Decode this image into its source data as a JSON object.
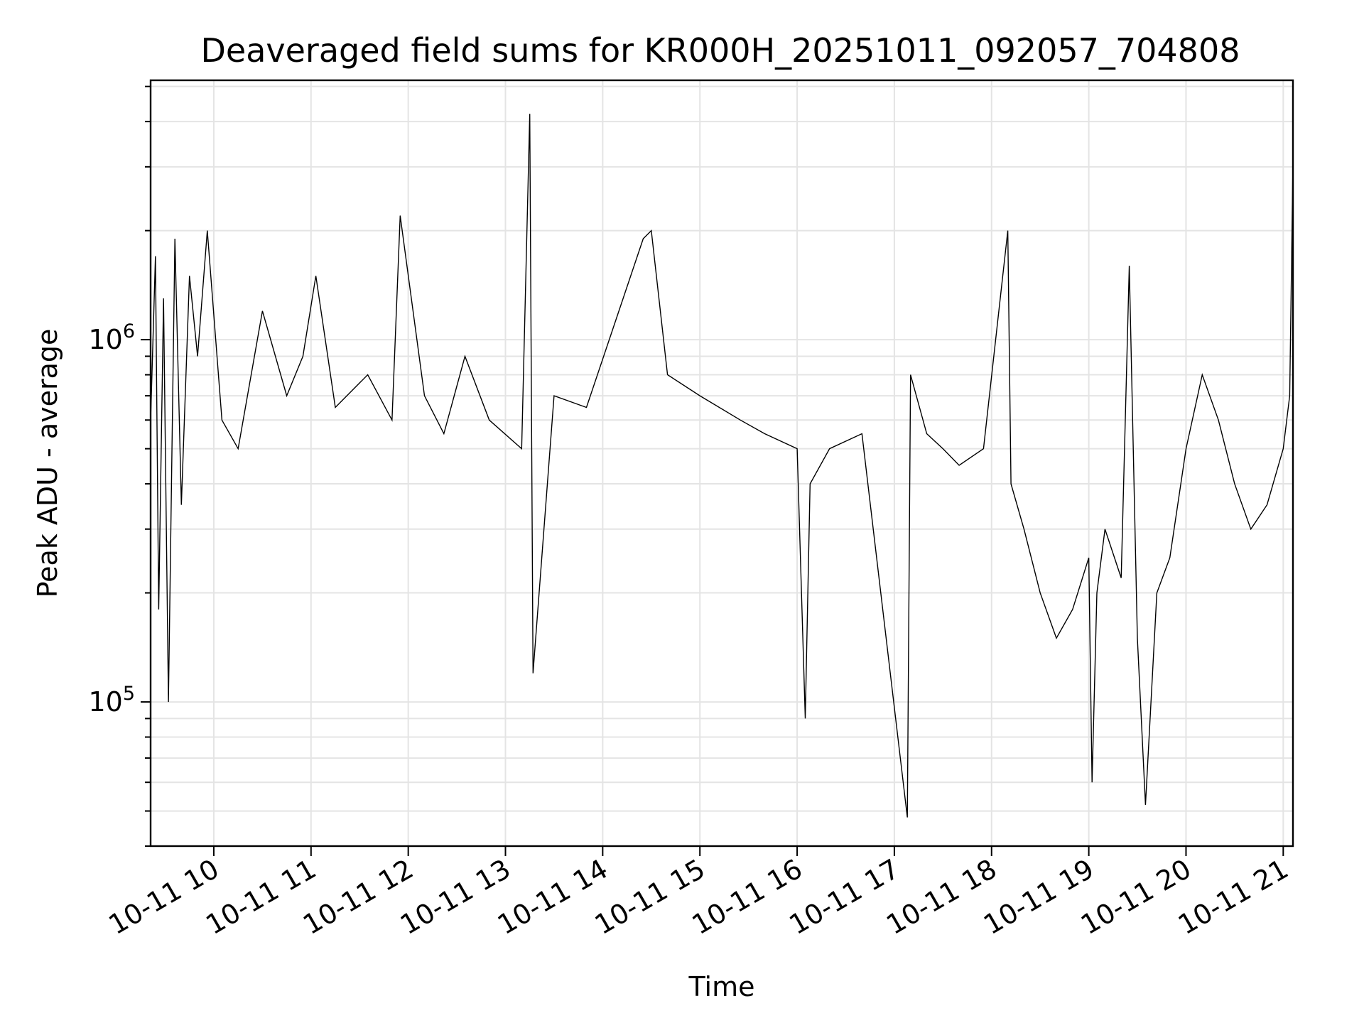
{
  "chart_data": {
    "type": "line",
    "title": "Deaveraged field sums for KR000H_20251011_092057_704808",
    "xlabel": "Time",
    "ylabel": "Peak ADU - average",
    "yscale": "log",
    "ylim": [
      40000,
      5200000
    ],
    "xlim": [
      "2025-10-11 09:21",
      "2025-10-11 21:06"
    ],
    "grid": true,
    "x_ticks": [
      {
        "value": "2025-10-11 10:00",
        "label": "10-11 10"
      },
      {
        "value": "2025-10-11 11:00",
        "label": "10-11 11"
      },
      {
        "value": "2025-10-11 12:00",
        "label": "10-11 12"
      },
      {
        "value": "2025-10-11 13:00",
        "label": "10-11 13"
      },
      {
        "value": "2025-10-11 14:00",
        "label": "10-11 14"
      },
      {
        "value": "2025-10-11 15:00",
        "label": "10-11 15"
      },
      {
        "value": "2025-10-11 16:00",
        "label": "10-11 16"
      },
      {
        "value": "2025-10-11 17:00",
        "label": "10-11 17"
      },
      {
        "value": "2025-10-11 18:00",
        "label": "10-11 18"
      },
      {
        "value": "2025-10-11 19:00",
        "label": "10-11 19"
      },
      {
        "value": "2025-10-11 20:00",
        "label": "10-11 20"
      },
      {
        "value": "2025-10-11 21:00",
        "label": "10-11 21"
      }
    ],
    "y_major_ticks": [
      {
        "value": 100000,
        "base": "10",
        "exp": "5"
      },
      {
        "value": 1000000,
        "base": "10",
        "exp": "6"
      }
    ],
    "y_minor_ticks": [
      40000,
      50000,
      60000,
      70000,
      80000,
      90000,
      200000,
      300000,
      400000,
      500000,
      600000,
      700000,
      800000,
      900000,
      2000000,
      3000000,
      4000000,
      5000000
    ],
    "series": [
      {
        "x": [
          "2025-10-11 09:21",
          "2025-10-11 09:24",
          "2025-10-11 09:26",
          "2025-10-11 09:29",
          "2025-10-11 09:32",
          "2025-10-11 09:36",
          "2025-10-11 09:40",
          "2025-10-11 09:45",
          "2025-10-11 09:50",
          "2025-10-11 09:56",
          "2025-10-11 10:05",
          "2025-10-11 10:15",
          "2025-10-11 10:30",
          "2025-10-11 10:45",
          "2025-10-11 10:55",
          "2025-10-11 11:03",
          "2025-10-11 11:15",
          "2025-10-11 11:35",
          "2025-10-11 11:50",
          "2025-10-11 11:55",
          "2025-10-11 12:10",
          "2025-10-11 12:22",
          "2025-10-11 12:35",
          "2025-10-11 12:50",
          "2025-10-11 13:10",
          "2025-10-11 13:15",
          "2025-10-11 13:17",
          "2025-10-11 13:30",
          "2025-10-11 13:50",
          "2025-10-11 14:25",
          "2025-10-11 14:30",
          "2025-10-11 14:40",
          "2025-10-11 15:00",
          "2025-10-11 15:25",
          "2025-10-11 15:40",
          "2025-10-11 16:00",
          "2025-10-11 16:05",
          "2025-10-11 16:08",
          "2025-10-11 16:20",
          "2025-10-11 16:40",
          "2025-10-11 17:08",
          "2025-10-11 17:10",
          "2025-10-11 17:20",
          "2025-10-11 17:30",
          "2025-10-11 17:40",
          "2025-10-11 17:55",
          "2025-10-11 18:10",
          "2025-10-11 18:12",
          "2025-10-11 18:20",
          "2025-10-11 18:30",
          "2025-10-11 18:40",
          "2025-10-11 18:50",
          "2025-10-11 19:00",
          "2025-10-11 19:02",
          "2025-10-11 19:05",
          "2025-10-11 19:10",
          "2025-10-11 19:20",
          "2025-10-11 19:25",
          "2025-10-11 19:30",
          "2025-10-11 19:35",
          "2025-10-11 19:42",
          "2025-10-11 19:50",
          "2025-10-11 20:00",
          "2025-10-11 20:10",
          "2025-10-11 20:20",
          "2025-10-11 20:30",
          "2025-10-11 20:40",
          "2025-10-11 20:50",
          "2025-10-11 21:00",
          "2025-10-11 21:04",
          "2025-10-11 21:06"
        ],
        "y": [
          600000,
          1700000,
          180000,
          1300000,
          100000,
          1900000,
          350000,
          1500000,
          900000,
          2000000,
          600000,
          500000,
          1200000,
          700000,
          900000,
          1500000,
          650000,
          800000,
          600000,
          2200000,
          700000,
          550000,
          900000,
          600000,
          500000,
          4200000,
          120000,
          700000,
          650000,
          1900000,
          2000000,
          800000,
          700000,
          600000,
          550000,
          500000,
          90000,
          400000,
          500000,
          550000,
          48000,
          800000,
          550000,
          500000,
          450000,
          500000,
          2000000,
          400000,
          300000,
          200000,
          150000,
          180000,
          250000,
          60000,
          200000,
          300000,
          220000,
          1600000,
          150000,
          52000,
          200000,
          250000,
          500000,
          800000,
          600000,
          400000,
          300000,
          350000,
          500000,
          700000,
          3100000
        ]
      }
    ]
  }
}
